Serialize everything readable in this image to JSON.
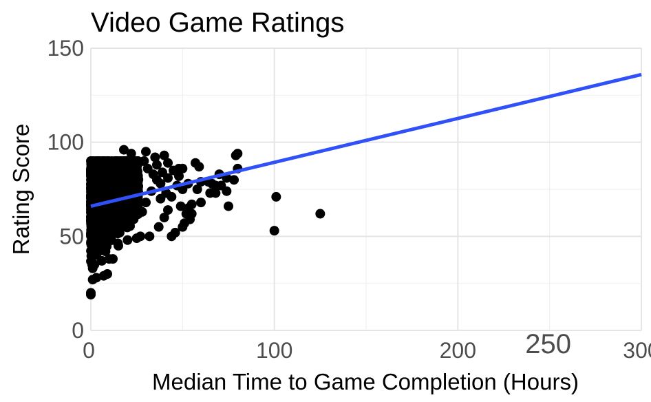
{
  "chart_data": {
    "type": "scatter",
    "title": "Video Game Ratings",
    "xlabel": "Median Time to Game Completion (Hours)",
    "ylabel": "Rating Score",
    "xlim": [
      0,
      300
    ],
    "ylim": [
      0,
      150
    ],
    "x_ticks": [
      {
        "value": 0,
        "label": "0"
      },
      {
        "value": 100,
        "label": "100"
      },
      {
        "value": 200,
        "label": "200"
      },
      {
        "value": 250,
        "label": "250",
        "highlight": true
      },
      {
        "value": 300,
        "label": "300"
      }
    ],
    "y_ticks": [
      {
        "value": 0,
        "label": "0"
      },
      {
        "value": 50,
        "label": "50"
      },
      {
        "value": 100,
        "label": "100"
      },
      {
        "value": 150,
        "label": "150"
      }
    ],
    "x_minor_ticks": [
      50,
      150,
      250
    ],
    "y_minor_ticks": [
      25,
      75,
      125
    ],
    "grid": true,
    "highlight_color": "#ff0000",
    "point_color": "#000000",
    "trend_line": {
      "color": "#3050f8",
      "x": [
        0,
        300
      ],
      "y": [
        66,
        136
      ]
    },
    "cluster": {
      "count": 1400,
      "x_max": 26,
      "y_min": 20,
      "y_max": 90
    },
    "points": [
      {
        "x": 0,
        "y": 19
      },
      {
        "x": 0,
        "y": 20
      },
      {
        "x": 1,
        "y": 27
      },
      {
        "x": 3,
        "y": 28
      },
      {
        "x": 7,
        "y": 29
      },
      {
        "x": 9,
        "y": 30
      },
      {
        "x": 1,
        "y": 33
      },
      {
        "x": 2,
        "y": 35
      },
      {
        "x": 6,
        "y": 37
      },
      {
        "x": 10,
        "y": 38
      },
      {
        "x": 12,
        "y": 38
      },
      {
        "x": 3,
        "y": 40
      },
      {
        "x": 8,
        "y": 42
      },
      {
        "x": 15,
        "y": 45
      },
      {
        "x": 20,
        "y": 48
      },
      {
        "x": 25,
        "y": 49
      },
      {
        "x": 27,
        "y": 50
      },
      {
        "x": 32,
        "y": 50
      },
      {
        "x": 44,
        "y": 50
      },
      {
        "x": 46,
        "y": 52
      },
      {
        "x": 37,
        "y": 55
      },
      {
        "x": 50,
        "y": 55
      },
      {
        "x": 51,
        "y": 57
      },
      {
        "x": 54,
        "y": 59
      },
      {
        "x": 40,
        "y": 60
      },
      {
        "x": 52,
        "y": 62
      },
      {
        "x": 55,
        "y": 62
      },
      {
        "x": 28,
        "y": 63
      },
      {
        "x": 42,
        "y": 64
      },
      {
        "x": 49,
        "y": 66
      },
      {
        "x": 53,
        "y": 65
      },
      {
        "x": 55,
        "y": 67
      },
      {
        "x": 60,
        "y": 68
      },
      {
        "x": 30,
        "y": 68
      },
      {
        "x": 38,
        "y": 70
      },
      {
        "x": 44,
        "y": 71
      },
      {
        "x": 41,
        "y": 73
      },
      {
        "x": 33,
        "y": 74
      },
      {
        "x": 50,
        "y": 75
      },
      {
        "x": 58,
        "y": 75
      },
      {
        "x": 38,
        "y": 78
      },
      {
        "x": 47,
        "y": 77
      },
      {
        "x": 53,
        "y": 78
      },
      {
        "x": 60,
        "y": 79
      },
      {
        "x": 36,
        "y": 80
      },
      {
        "x": 42,
        "y": 81
      },
      {
        "x": 48,
        "y": 82
      },
      {
        "x": 34,
        "y": 83
      },
      {
        "x": 39,
        "y": 84
      },
      {
        "x": 45,
        "y": 85
      },
      {
        "x": 50,
        "y": 86
      },
      {
        "x": 31,
        "y": 86
      },
      {
        "x": 36,
        "y": 88
      },
      {
        "x": 42,
        "y": 89
      },
      {
        "x": 48,
        "y": 86
      },
      {
        "x": 29,
        "y": 90
      },
      {
        "x": 35,
        "y": 92
      },
      {
        "x": 40,
        "y": 93
      },
      {
        "x": 30,
        "y": 95
      },
      {
        "x": 18,
        "y": 96
      },
      {
        "x": 22,
        "y": 94
      },
      {
        "x": 57,
        "y": 89
      },
      {
        "x": 59,
        "y": 87
      },
      {
        "x": 64,
        "y": 79
      },
      {
        "x": 66,
        "y": 78
      },
      {
        "x": 68,
        "y": 77
      },
      {
        "x": 70,
        "y": 83
      },
      {
        "x": 65,
        "y": 73
      },
      {
        "x": 68,
        "y": 73
      },
      {
        "x": 74,
        "y": 74
      },
      {
        "x": 71,
        "y": 77
      },
      {
        "x": 75,
        "y": 66
      },
      {
        "x": 74,
        "y": 81
      },
      {
        "x": 78,
        "y": 80
      },
      {
        "x": 80,
        "y": 86
      },
      {
        "x": 79,
        "y": 93
      },
      {
        "x": 80,
        "y": 94
      },
      {
        "x": 100,
        "y": 53
      },
      {
        "x": 101,
        "y": 71
      },
      {
        "x": 125,
        "y": 62
      }
    ]
  }
}
